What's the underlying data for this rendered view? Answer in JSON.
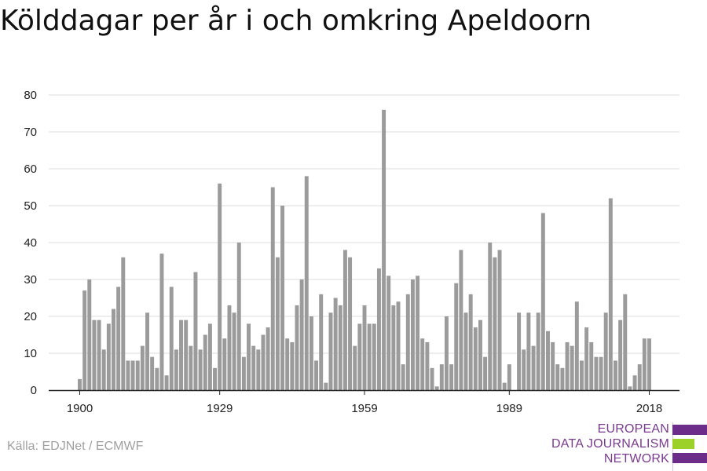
{
  "title": "Kölddagar per år i och omkring Apeldoorn",
  "source": "Källa: EDJNet / ECMWF",
  "logo": {
    "lines": [
      "EUROPEAN",
      "DATA JOURNALISM",
      "NETWORK"
    ],
    "colors": {
      "purple": "#6b2c8a",
      "green": "#9cd12a",
      "text": "#7a3a8f"
    }
  },
  "colors": {
    "bar": "#9b9b9b",
    "grid": "#dddddd",
    "axis": "#222222",
    "text": "#222222"
  },
  "chart_data": {
    "type": "bar",
    "title": "Kölddagar per år i och omkring Apeldoorn",
    "xlabel": "",
    "ylabel": "",
    "ylim": [
      0,
      80
    ],
    "yticks": [
      0,
      10,
      20,
      30,
      40,
      50,
      60,
      70,
      80
    ],
    "xticks": [
      1900,
      1929,
      1959,
      1989,
      2018
    ],
    "grid": true,
    "x": [
      1900,
      1901,
      1902,
      1903,
      1904,
      1905,
      1906,
      1907,
      1908,
      1909,
      1910,
      1911,
      1912,
      1913,
      1914,
      1915,
      1916,
      1917,
      1918,
      1919,
      1920,
      1921,
      1922,
      1923,
      1924,
      1925,
      1926,
      1927,
      1928,
      1929,
      1930,
      1931,
      1932,
      1933,
      1934,
      1935,
      1936,
      1937,
      1938,
      1939,
      1940,
      1941,
      1942,
      1943,
      1944,
      1945,
      1946,
      1947,
      1948,
      1949,
      1950,
      1951,
      1952,
      1953,
      1954,
      1955,
      1956,
      1957,
      1958,
      1959,
      1960,
      1961,
      1962,
      1963,
      1964,
      1965,
      1966,
      1967,
      1968,
      1969,
      1970,
      1971,
      1972,
      1973,
      1974,
      1975,
      1976,
      1977,
      1978,
      1979,
      1980,
      1981,
      1982,
      1983,
      1984,
      1985,
      1986,
      1987,
      1988,
      1989,
      1990,
      1991,
      1992,
      1993,
      1994,
      1995,
      1996,
      1997,
      1998,
      1999,
      2000,
      2001,
      2002,
      2003,
      2004,
      2005,
      2006,
      2007,
      2008,
      2009,
      2010,
      2011,
      2012,
      2013,
      2014,
      2015,
      2016,
      2017,
      2018
    ],
    "values": [
      3,
      27,
      30,
      19,
      19,
      11,
      18,
      22,
      28,
      36,
      8,
      8,
      8,
      12,
      21,
      9,
      6,
      37,
      4,
      28,
      11,
      19,
      19,
      12,
      32,
      11,
      15,
      18,
      6,
      56,
      14,
      23,
      21,
      40,
      9,
      18,
      12,
      11,
      15,
      17,
      55,
      36,
      50,
      14,
      13,
      23,
      30,
      58,
      20,
      8,
      26,
      2,
      21,
      25,
      23,
      38,
      36,
      12,
      18,
      23,
      18,
      18,
      33,
      76,
      31,
      23,
      24,
      7,
      26,
      30,
      31,
      14,
      13,
      6,
      1,
      7,
      20,
      7,
      29,
      38,
      21,
      26,
      17,
      19,
      9,
      40,
      36,
      38,
      2,
      7,
      0,
      21,
      11,
      21,
      12,
      21,
      48,
      16,
      13,
      7,
      6,
      13,
      12,
      24,
      8,
      17,
      13,
      9,
      9,
      21,
      52,
      8,
      19,
      26,
      1,
      4,
      7,
      14,
      14
    ]
  }
}
